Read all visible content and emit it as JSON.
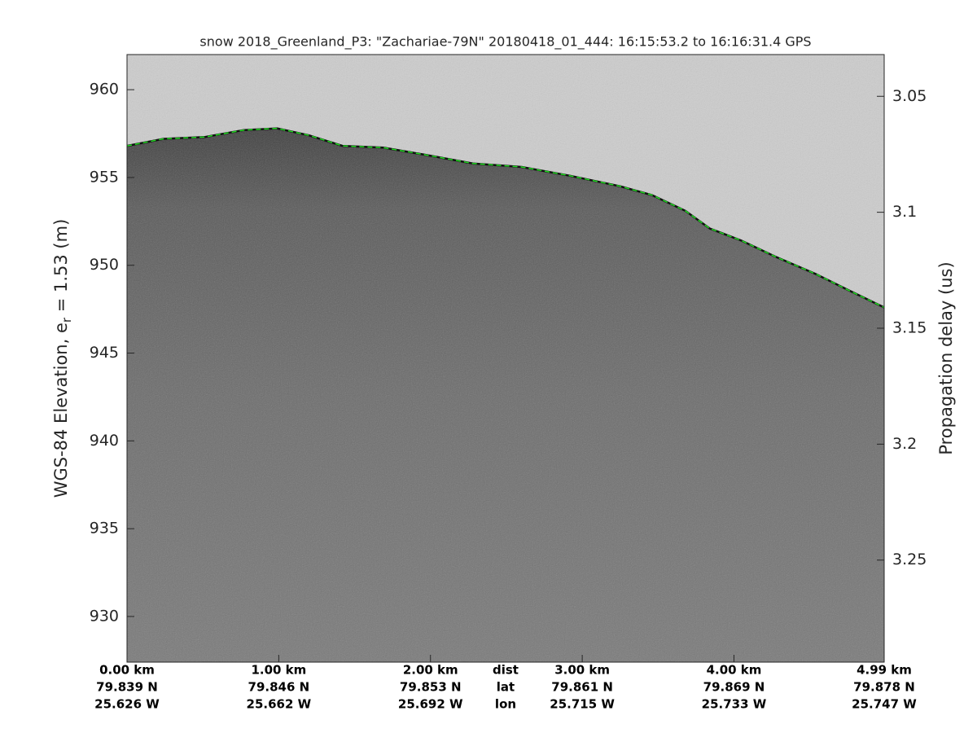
{
  "chart_data": {
    "type": "echogram",
    "title": "snow 2018_Greenland_P3: \"Zachariae-79N\"  20180418_01_444: 16:15:53.2 to 16:16:31.4 GPS",
    "ylabel": [
      "WGS-84 Elevation, e",
      "r",
      " = 1.53 (m)"
    ],
    "y2label": "Propagation delay (us)",
    "xlim": [
      0,
      4.99
    ],
    "xticks": [
      {
        "value": 0,
        "label": "0.00 km"
      },
      {
        "value": 1,
        "label": "1.00 km"
      },
      {
        "value": 2,
        "label": "2.00 km"
      },
      {
        "value": 3,
        "label": "3.00 km"
      },
      {
        "value": 4,
        "label": "4.00 km"
      },
      {
        "value": 4.99,
        "label": "4.99 km"
      }
    ],
    "lat_labels": [
      "79.839 N",
      "79.846 N",
      "79.853 N",
      "79.861 N",
      "79.869 N",
      "79.878 N"
    ],
    "lon_labels": [
      "25.626 W",
      "25.662 W",
      "25.692 W",
      "25.715 W",
      "25.733 W",
      "25.747 W"
    ],
    "row_labels": [
      "dist",
      "lat",
      "lon"
    ],
    "ylim": [
      927.4,
      962.0
    ],
    "yticks": [
      930,
      935,
      940,
      945,
      950,
      955,
      960
    ],
    "y2lim": [
      3.294,
      3.032
    ],
    "y2ticks": [
      3.05,
      3.1,
      3.15,
      3.2,
      3.25
    ],
    "surface": {
      "color": "#22dd22",
      "x": [
        0,
        0.24,
        0.51,
        0.77,
        0.99,
        1.2,
        1.42,
        1.69,
        1.96,
        2.28,
        2.6,
        2.92,
        3.25,
        3.46,
        3.68,
        3.84,
        4.05,
        4.27,
        4.54,
        4.75,
        4.99
      ],
      "values": [
        956.8,
        957.2,
        957.3,
        957.7,
        957.8,
        957.4,
        956.8,
        956.7,
        956.3,
        955.8,
        955.6,
        955.1,
        954.5,
        954.0,
        953.1,
        952.1,
        951.4,
        950.5,
        949.5,
        948.6,
        947.6
      ]
    }
  }
}
